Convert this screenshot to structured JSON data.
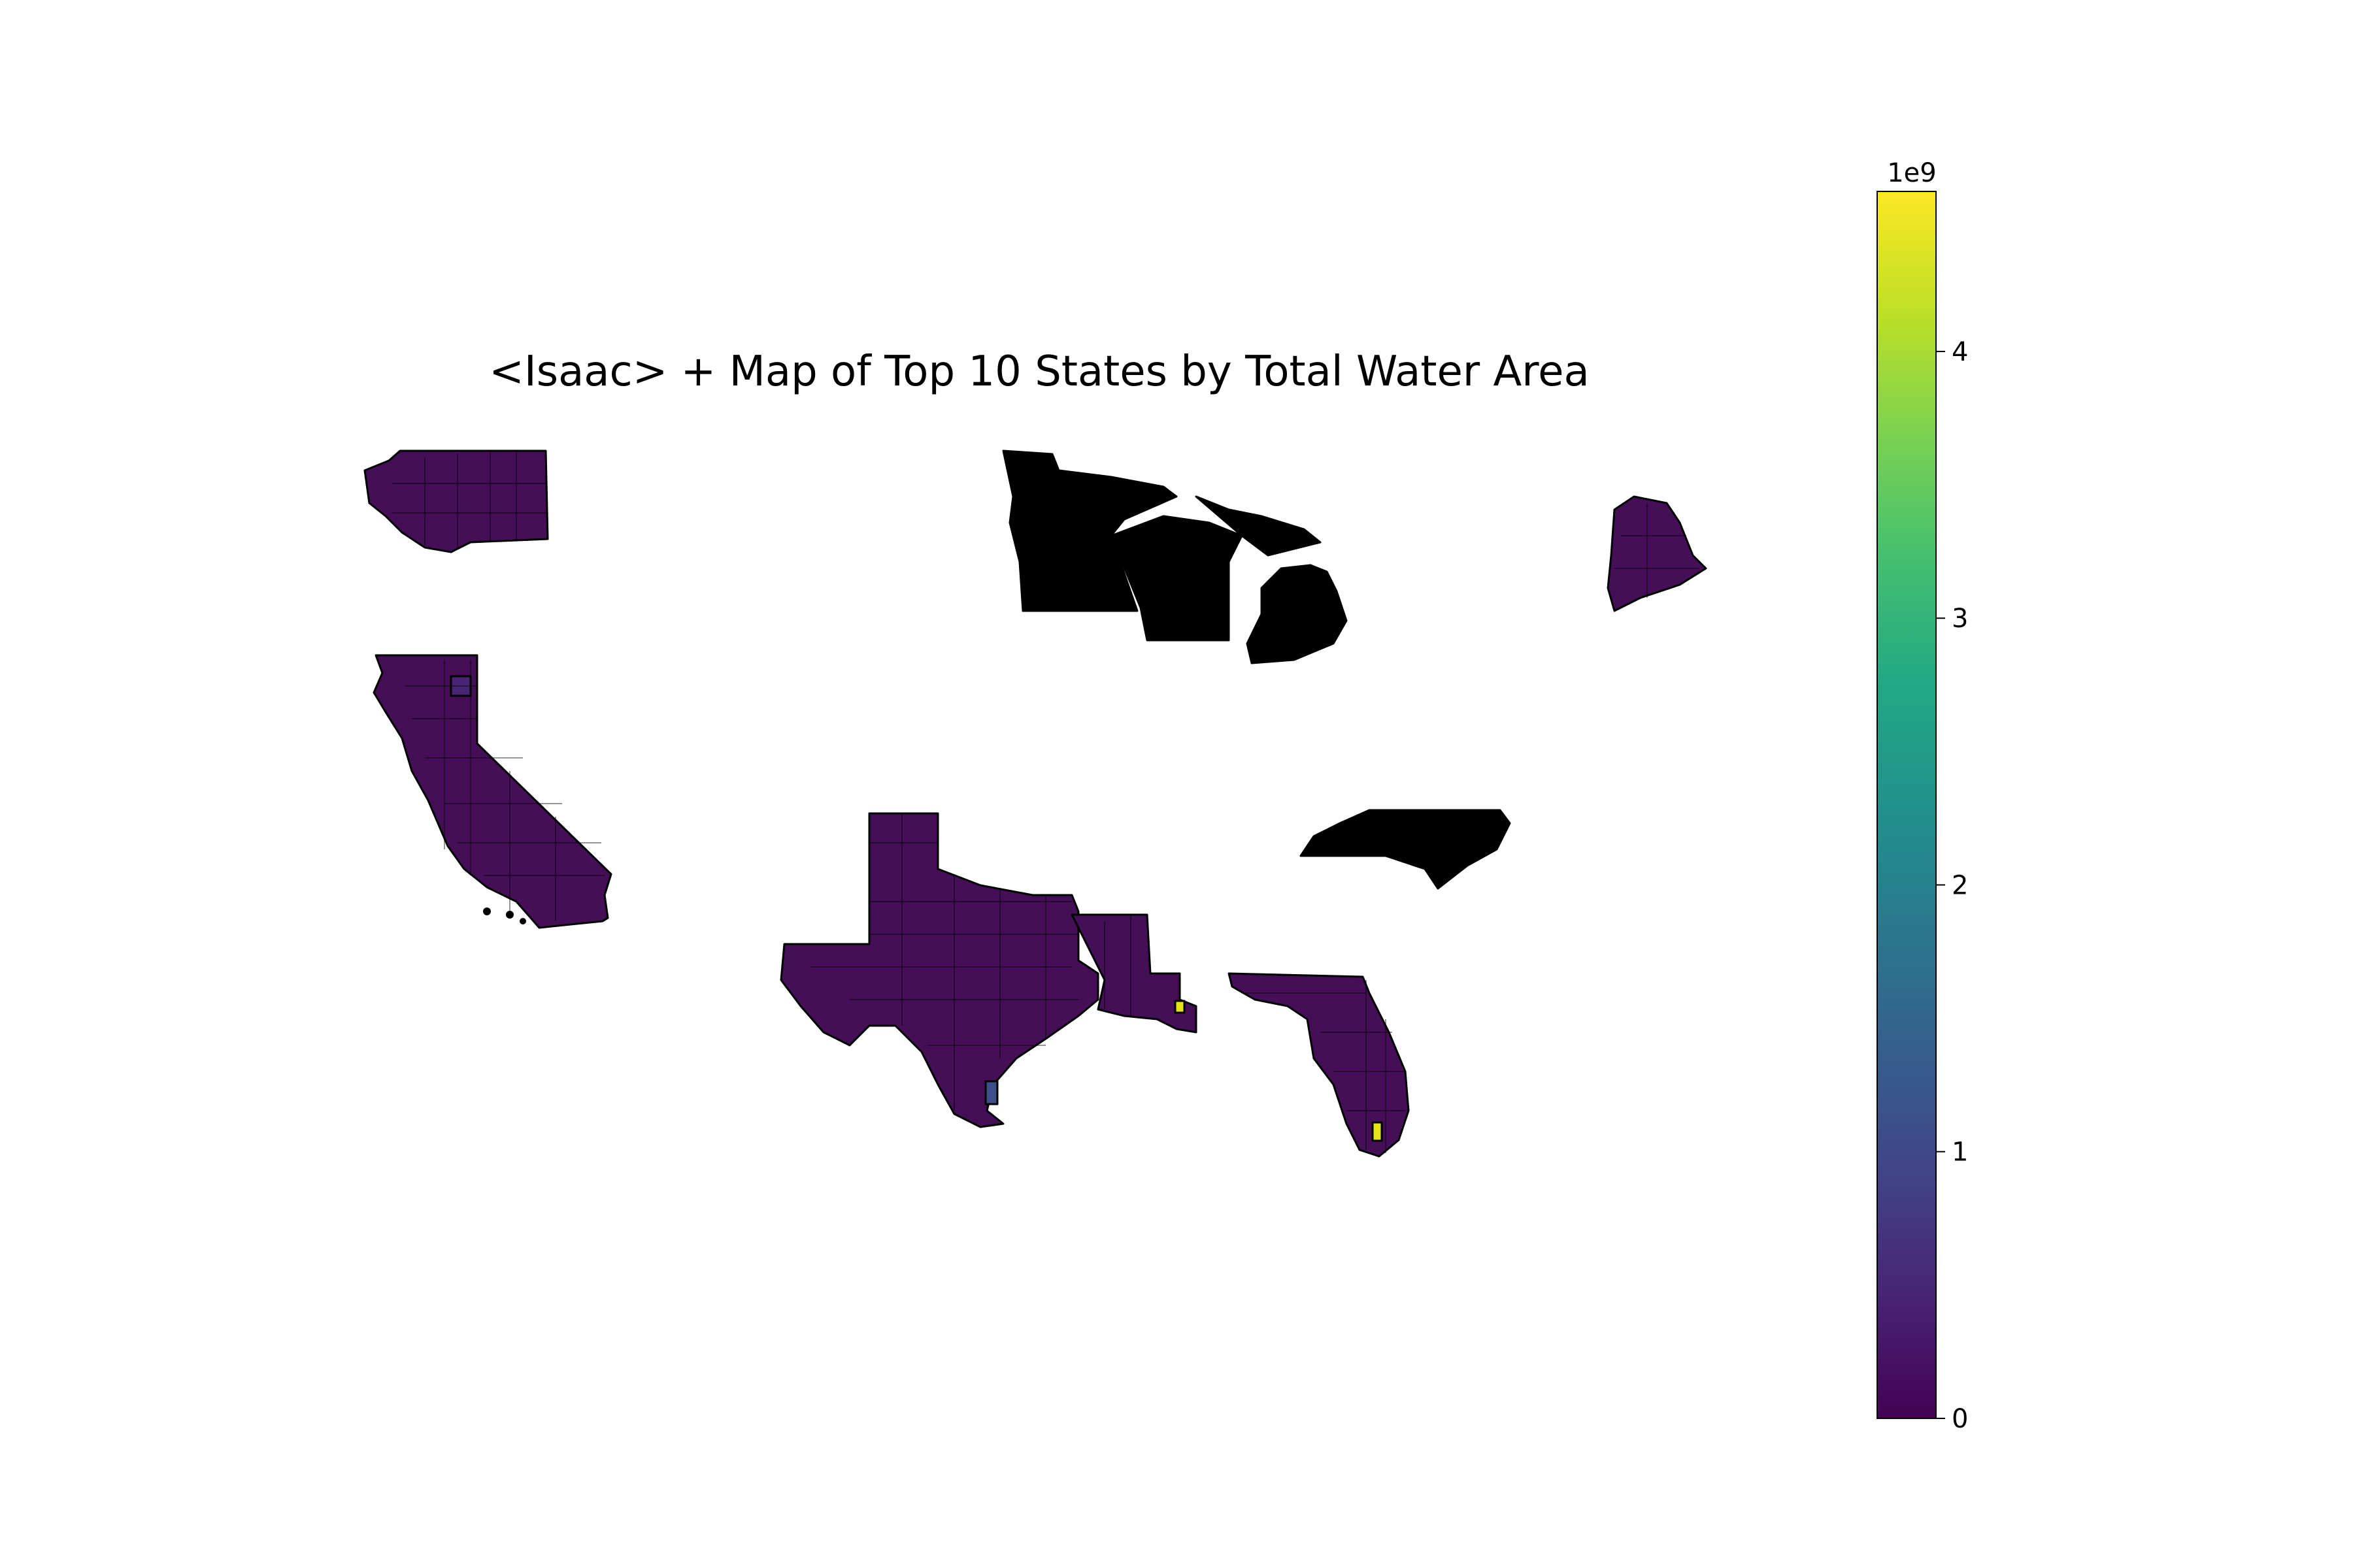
{
  "chart_data": {
    "type": "choropleth",
    "title": "<Isaac> + Map of Top 10 States by Total Water Area",
    "colormap": "viridis",
    "colorbar": {
      "min": 0,
      "max": 4.6,
      "offset_label": "1e9",
      "ticks": [
        0,
        1,
        2,
        3,
        4
      ],
      "tick_labels": [
        "0",
        "1",
        "2",
        "3",
        "4"
      ]
    },
    "legend": "right",
    "axis": "off"
  },
  "colors": {
    "county_fill": "#440f56",
    "great_lakes_states_fill": "#000000",
    "high_value_fill": "#e6e419",
    "mid_value_fill": "#3d4f8a",
    "edge": "#000000"
  }
}
